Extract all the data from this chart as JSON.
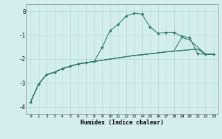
{
  "xlabel": "Humidex (Indice chaleur)",
  "ylabel": "",
  "background_color": "#d4eeee",
  "grid_color": "#b0d8d8",
  "line_color": "#2e7b6e",
  "xlim": [
    -0.5,
    23.5
  ],
  "ylim": [
    -4.3,
    0.3
  ],
  "yticks": [
    0,
    -1,
    -2,
    -3,
    -4
  ],
  "xticks": [
    0,
    1,
    2,
    3,
    4,
    5,
    6,
    7,
    8,
    9,
    10,
    11,
    12,
    13,
    14,
    15,
    16,
    17,
    18,
    19,
    20,
    21,
    22,
    23
  ],
  "series": [
    {
      "x": [
        0,
        1,
        2,
        3,
        4,
        5,
        6,
        7,
        8,
        9,
        10,
        11,
        12,
        13,
        14,
        15,
        16,
        17,
        18,
        19,
        20,
        21,
        22,
        23
      ],
      "y": [
        -3.8,
        -3.05,
        -2.65,
        -2.55,
        -2.4,
        -2.3,
        -2.2,
        -2.15,
        -2.1,
        -2.05,
        -2.0,
        -1.95,
        -1.9,
        -1.85,
        -1.82,
        -1.78,
        -1.74,
        -1.7,
        -1.67,
        -1.64,
        -1.61,
        -1.58,
        -1.8,
        -1.8
      ],
      "marker": false
    },
    {
      "x": [
        0,
        1,
        2,
        3,
        4,
        5,
        6,
        7,
        8,
        9,
        10,
        11,
        12,
        13,
        14,
        15,
        16,
        17,
        18,
        19,
        20,
        21,
        22,
        23
      ],
      "y": [
        -3.8,
        -3.05,
        -2.65,
        -2.55,
        -2.4,
        -2.3,
        -2.2,
        -2.15,
        -2.1,
        -1.5,
        -0.8,
        -0.55,
        -0.2,
        -0.08,
        -0.12,
        -0.65,
        -0.92,
        -0.88,
        -0.88,
        -1.05,
        -1.1,
        -1.78,
        -1.8,
        -1.8
      ],
      "marker": true
    },
    {
      "x": [
        0,
        1,
        2,
        3,
        4,
        5,
        6,
        7,
        8,
        9,
        10,
        11,
        12,
        13,
        14,
        15,
        16,
        17,
        18,
        19,
        20,
        21,
        22,
        23
      ],
      "y": [
        -3.8,
        -3.05,
        -2.65,
        -2.55,
        -2.4,
        -2.3,
        -2.2,
        -2.15,
        -2.1,
        -2.05,
        -2.0,
        -1.95,
        -1.9,
        -1.85,
        -1.82,
        -1.78,
        -1.74,
        -1.7,
        -1.67,
        -1.1,
        -1.2,
        -1.5,
        -1.8,
        -1.8
      ],
      "marker": false
    },
    {
      "x": [
        0,
        1,
        2,
        3,
        4,
        5,
        6,
        7,
        8,
        9,
        10,
        11,
        12,
        13,
        14,
        15,
        16,
        17,
        18,
        19,
        20,
        21,
        22,
        23
      ],
      "y": [
        -3.8,
        -3.05,
        -2.65,
        -2.55,
        -2.4,
        -2.3,
        -2.2,
        -2.15,
        -2.1,
        -2.05,
        -2.0,
        -1.95,
        -1.9,
        -1.85,
        -1.82,
        -1.78,
        -1.74,
        -1.7,
        -1.67,
        -1.64,
        -1.61,
        -1.58,
        -1.8,
        -1.8
      ],
      "marker": false
    }
  ]
}
